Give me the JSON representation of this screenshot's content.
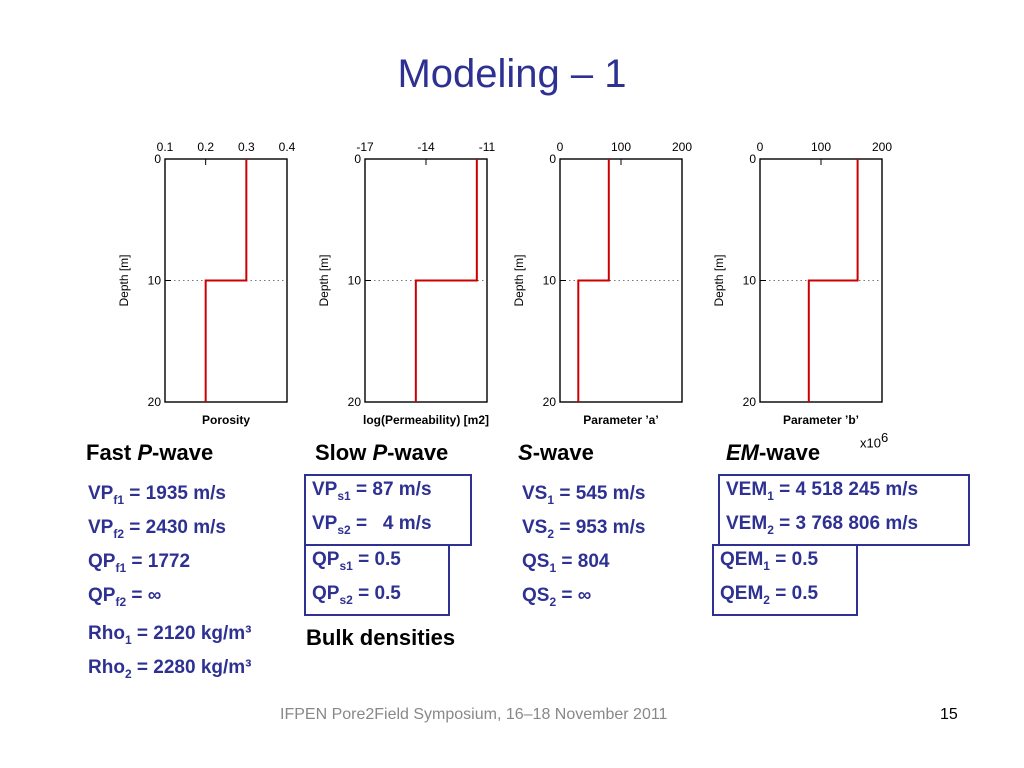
{
  "title": "Modeling – 1",
  "depth_label": "Depth [m]",
  "chart_data": [
    {
      "type": "line",
      "xlabel": "Porosity",
      "xticks": [
        "0.1",
        "0.2",
        "0.3",
        "0.4"
      ],
      "xlim": [
        0.1,
        0.4
      ],
      "yticks": [
        "0",
        "10",
        "20"
      ],
      "ylim": [
        0,
        20
      ],
      "y_dotted": 10,
      "x": [
        0.3,
        0.3,
        0.2,
        0.2
      ],
      "y": [
        0,
        10,
        10,
        20
      ]
    },
    {
      "type": "line",
      "xlabel": "log(Permeability) [m2]",
      "xticks": [
        "-17",
        "-14",
        "-11"
      ],
      "xlim": [
        -17,
        -11
      ],
      "yticks": [
        "0",
        "10",
        "20"
      ],
      "ylim": [
        0,
        20
      ],
      "y_dotted": 10,
      "x": [
        -11.5,
        -11.5,
        -14.5,
        -14.5
      ],
      "y": [
        0,
        10,
        10,
        20
      ]
    },
    {
      "type": "line",
      "xlabel": "Parameter ’a’",
      "xticks": [
        "0",
        "100",
        "200"
      ],
      "xlim": [
        0,
        200
      ],
      "yticks": [
        "0",
        "10",
        "20"
      ],
      "ylim": [
        0,
        20
      ],
      "y_dotted": 10,
      "x": [
        80,
        80,
        30,
        30
      ],
      "y": [
        0,
        10,
        10,
        20
      ]
    },
    {
      "type": "line",
      "xlabel": "Parameter ’b’",
      "xticks": [
        "0",
        "100",
        "200"
      ],
      "xlim": [
        0,
        200
      ],
      "yticks": [
        "0",
        "10",
        "20"
      ],
      "ylim": [
        0,
        20
      ],
      "y_dotted": 10,
      "x": [
        160,
        160,
        80,
        80
      ],
      "y": [
        0,
        10,
        10,
        20
      ]
    }
  ],
  "x10": {
    "base": "x10",
    "exp": "6"
  },
  "waves": {
    "fast": {
      "pre": "Fast ",
      "it": "P",
      "post": "-wave"
    },
    "slow": {
      "pre": "Slow ",
      "it": "P",
      "post": "-wave"
    },
    "s": {
      "pre": "",
      "it": "S",
      "post": "-wave"
    },
    "em": {
      "pre": "",
      "it": "EM",
      "post": "-wave"
    }
  },
  "fast": {
    "v1": {
      "pre": "VP",
      "sub": "f1",
      "val": " = 1935 m/s"
    },
    "v2": {
      "pre": "VP",
      "sub": "f2",
      "val": " = 2430 m/s"
    },
    "q1": {
      "pre": "QP",
      "sub": "f1",
      "val": " = 1772"
    },
    "q2": {
      "pre": "QP",
      "sub": "f2",
      "val": " = ∞"
    },
    "r1": {
      "pre": "Rho",
      "sub": "1",
      "val": " = 2120 kg/m³"
    },
    "r2": {
      "pre": "Rho",
      "sub": "2",
      "val": " = 2280 kg/m³"
    }
  },
  "slow": {
    "v1": {
      "pre": "VP",
      "sub": "s1",
      "val": " = 87 m/s"
    },
    "v2": {
      "pre": "VP",
      "sub": "s2",
      "val": " =   4 m/s"
    },
    "q1": {
      "pre": "QP",
      "sub": "s1",
      "val": " = 0.5"
    },
    "q2": {
      "pre": "QP",
      "sub": "s2",
      "val": " = 0.5"
    }
  },
  "s": {
    "v1": {
      "pre": "VS",
      "sub": "1",
      "val": " = 545 m/s"
    },
    "v2": {
      "pre": "VS",
      "sub": "2",
      "val": " = 953 m/s"
    },
    "q1": {
      "pre": "QS",
      "sub": "1",
      "val": " = 804"
    },
    "q2": {
      "pre": "QS",
      "sub": "2",
      "val": " = ∞"
    }
  },
  "em": {
    "v1": {
      "pre": "VEM",
      "sub": "1",
      "val": " = 4 518 245 m/s"
    },
    "v2": {
      "pre": "VEM",
      "sub": "2",
      "val": " = 3 768 806 m/s"
    },
    "q1": {
      "pre": "QEM",
      "sub": "1",
      "val": " = 0.5"
    },
    "q2": {
      "pre": "QEM",
      "sub": "2",
      "val": " = 0.5"
    }
  },
  "bulk_label": "Bulk densities",
  "footer": "IFPEN Pore2Field Symposium, 16–18 November 2011",
  "page_number": "15",
  "colors": {
    "title": "#2e3192",
    "curve": "#cc0000",
    "text_blue": "#2e3192"
  }
}
